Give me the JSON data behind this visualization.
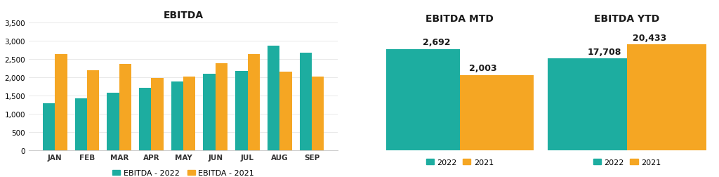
{
  "title_main": "EBITDA",
  "title_mtd": "EBITDA MTD",
  "title_ytd": "EBITDA YTD",
  "months": [
    "JAN",
    "FEB",
    "MAR",
    "APR",
    "MAY",
    "JUN",
    "JUL",
    "AUG",
    "SEP"
  ],
  "values_2022": [
    1280,
    1420,
    1580,
    1710,
    1890,
    2090,
    2180,
    2870,
    2680
  ],
  "values_2021": [
    2640,
    2190,
    2370,
    1980,
    2010,
    2390,
    2640,
    2160,
    2010
  ],
  "color_2022": "#1DADA0",
  "color_2021": "#F5A623",
  "mtd_2022": 2692,
  "mtd_2021": 2003,
  "ytd_2022": 17708,
  "ytd_2021": 20433,
  "legend_2022": "EBITDA - 2022",
  "legend_2021": "EBITDA - 2021",
  "legend_short_2022": "2022",
  "legend_short_2021": "2021",
  "ylim_main": [
    0,
    3500
  ],
  "yticks_main": [
    0,
    500,
    1000,
    1500,
    2000,
    2500,
    3000,
    3500
  ],
  "background_color": "#ffffff"
}
